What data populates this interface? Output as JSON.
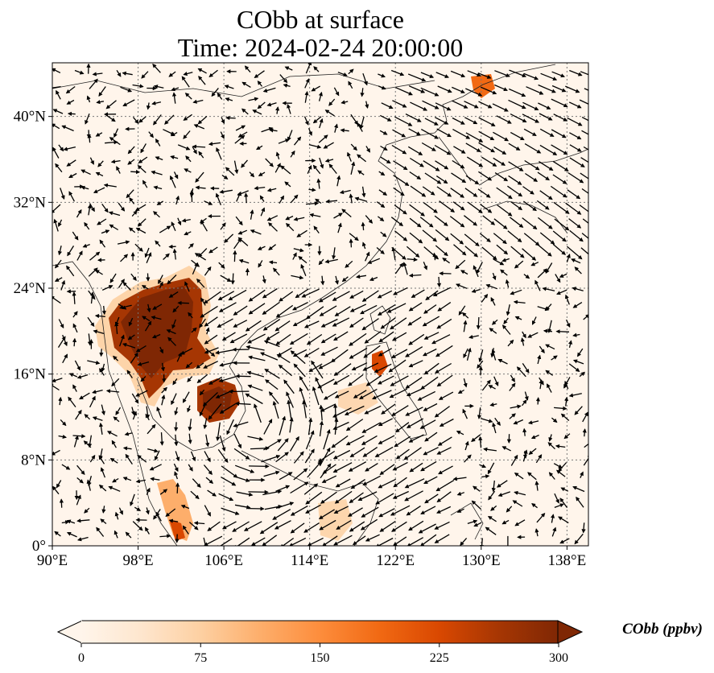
{
  "title": {
    "line1": "CObb at surface",
    "line2": "Time: 2024-02-24 20:00:00"
  },
  "map": {
    "variable": "CObb",
    "level": "surface",
    "lon_range": [
      90,
      140
    ],
    "lat_range": [
      0,
      45
    ],
    "gridlines": "dotted",
    "vector_overlay": "wind arrows",
    "lon_ticks": [
      {
        "value": 90,
        "label": "90°E"
      },
      {
        "value": 98,
        "label": "98°E"
      },
      {
        "value": 106,
        "label": "106°E"
      },
      {
        "value": 114,
        "label": "114°E"
      },
      {
        "value": 122,
        "label": "122°E"
      },
      {
        "value": 130,
        "label": "130°E"
      },
      {
        "value": 138,
        "label": "138°E"
      }
    ],
    "lat_ticks": [
      {
        "value": 0,
        "label": "0°"
      },
      {
        "value": 8,
        "label": "8°N"
      },
      {
        "value": 16,
        "label": "16°N"
      },
      {
        "value": 24,
        "label": "24°N"
      },
      {
        "value": 32,
        "label": "32°N"
      },
      {
        "value": 40,
        "label": "40°N"
      }
    ]
  },
  "colorbar": {
    "label": "CObb (ppbv)",
    "min": 0,
    "max": 300,
    "extend": "both",
    "colormap": [
      "#fff5eb",
      "#fee6ce",
      "#fdd0a2",
      "#fdae6b",
      "#fd8d3c",
      "#f16913",
      "#d94801",
      "#a63603",
      "#7f2704"
    ],
    "ticks": [
      {
        "value": 0,
        "label": "0"
      },
      {
        "value": 75,
        "label": "75"
      },
      {
        "value": 150,
        "label": "150"
      },
      {
        "value": 225,
        "label": "225"
      },
      {
        "value": 300,
        "label": "300"
      }
    ]
  }
}
